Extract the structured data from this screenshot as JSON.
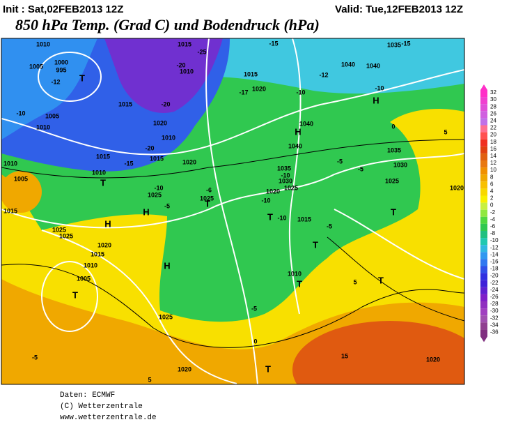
{
  "header": {
    "init": "Init : Sat,02FEB2013 12Z",
    "valid": "Valid: Tue,12FEB2013 12Z",
    "title": "850 hPa Temp. (Grad C) und Bodendruck (hPa)"
  },
  "colorbar": {
    "labels": [
      32,
      30,
      28,
      26,
      24,
      22,
      20,
      18,
      16,
      14,
      12,
      10,
      8,
      6,
      4,
      2,
      0,
      -2,
      -4,
      -6,
      -8,
      -10,
      -12,
      -14,
      -16,
      -18,
      -20,
      -22,
      -24,
      -26,
      -28,
      -30,
      -32,
      -34,
      -36
    ],
    "colors": [
      "#ff30c8",
      "#f040d0",
      "#e050d8",
      "#d060e0",
      "#c070e8",
      "#ff7090",
      "#ff5050",
      "#f03020",
      "#e04010",
      "#e06010",
      "#e87810",
      "#f09000",
      "#f0a800",
      "#f8c000",
      "#f8d800",
      "#f8f000",
      "#c8f040",
      "#90e840",
      "#50d840",
      "#30c850",
      "#20c080",
      "#20c8b0",
      "#30b8e0",
      "#3098f0",
      "#3078f0",
      "#3050e8",
      "#3030e0",
      "#4020d8",
      "#6020d0",
      "#8020c8",
      "#9030c0",
      "#a040c0",
      "#a050b0",
      "#904090",
      "#803080"
    ]
  },
  "map": {
    "labels": [
      "1010",
      "1005",
      "1000",
      "995",
      "-12",
      "T",
      "-10",
      "1005",
      "1010",
      "1015",
      "-20",
      "1020",
      "1010",
      "-20",
      "1015",
      "-15",
      "1020",
      "1015",
      "1010",
      "T",
      "1010",
      "1005",
      "1015",
      "1025",
      "1025",
      "H",
      "H",
      "-10",
      "1025",
      "-5",
      "-6",
      "1025",
      "T",
      "1020",
      "1015",
      "1010",
      "1005",
      "T",
      "H",
      "1025",
      "1020",
      "5",
      "-5",
      "1040",
      "1040",
      "1035",
      "-15",
      "-10",
      "H",
      "1040",
      "H",
      "1040",
      "1035",
      "1030",
      "1025",
      "0",
      "5",
      "1020",
      "T",
      "1035",
      "1030",
      "1025",
      "-10",
      "-5",
      "-5",
      "1020",
      "-10",
      "1015",
      "-5",
      "T",
      "-10",
      "T",
      "1010",
      "T",
      "-5",
      "0",
      "5",
      "T",
      "15",
      "1020",
      "T",
      "-17",
      "1020",
      "-10",
      "-12",
      "1015",
      "-15",
      "1015",
      "-25",
      "1010",
      "-20"
    ]
  },
  "footer": {
    "source": "Daten: ECMWF",
    "copyright": "(C) Wetterzentrale",
    "url": "www.wetterzentrale.de"
  }
}
